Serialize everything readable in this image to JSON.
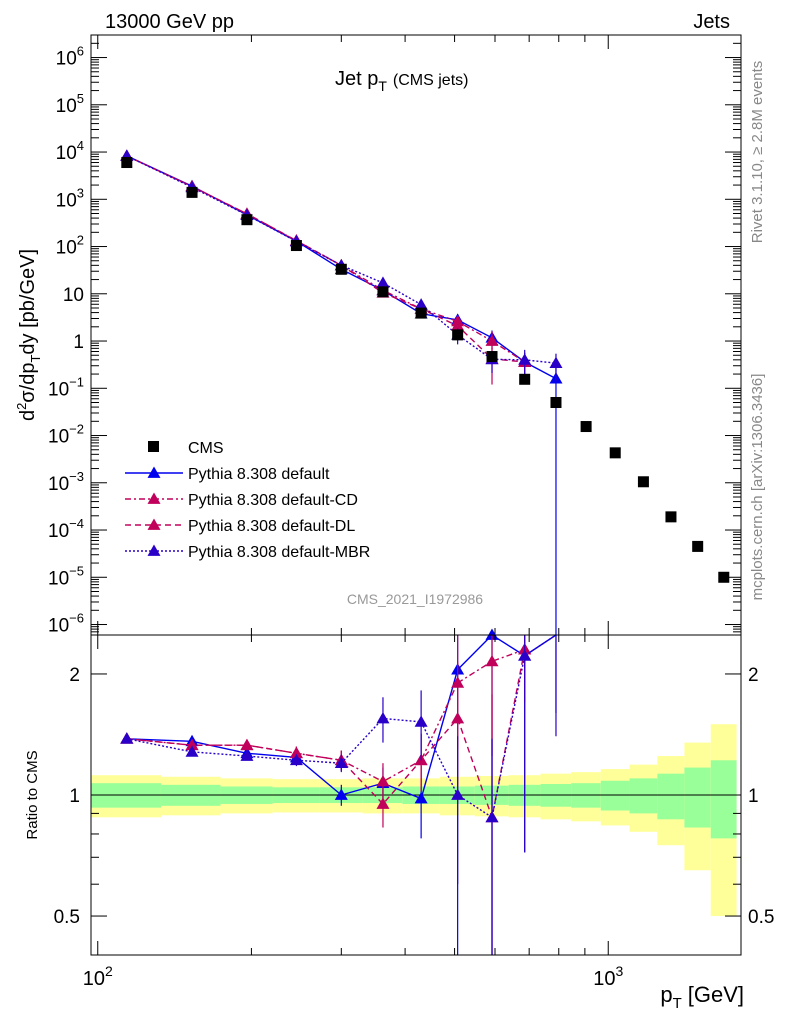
{
  "header": {
    "left": "13000 GeV pp",
    "right": "Jets"
  },
  "side_labels": {
    "rivet": "Rivet 3.1.10, ≥ 2.8M events",
    "mcplots": "mcplots.cern.ch [arXiv:1306.3436]"
  },
  "chart_data": {
    "type": "scatter",
    "title_main": "Jet p",
    "title_sub": "T",
    "title_extra": "(CMS jets)",
    "watermark": "CMS_2021_I1972986",
    "ylabel": "d²σ/dp_T dy [pb/GeV]",
    "ratio_ylabel": "Ratio to CMS",
    "xlabel_main": "p",
    "xlabel_sub": "T",
    "xlabel_unit": "[GeV]",
    "x_scale": "log",
    "y_scale": "log",
    "xlim": [
      97,
      1820
    ],
    "ylim": [
      6e-07,
      3000000.0
    ],
    "ratio_ylim": [
      0.4,
      2.5
    ],
    "x_ticks": [
      {
        "value": 100,
        "base": "10",
        "exp": "2"
      },
      {
        "value": 1000,
        "base": "10",
        "exp": "3"
      }
    ],
    "y_ticks": [
      {
        "value": 1000000.0,
        "base": "10",
        "exp": "6"
      },
      {
        "value": 100000.0,
        "base": "10",
        "exp": "5"
      },
      {
        "value": 10000.0,
        "base": "10",
        "exp": "4"
      },
      {
        "value": 1000.0,
        "base": "10",
        "exp": "3"
      },
      {
        "value": 100.0,
        "base": "10",
        "exp": "2"
      },
      {
        "value": 10,
        "base": "10",
        "exp": ""
      },
      {
        "value": 1,
        "base": "1",
        "exp": ""
      },
      {
        "value": 0.1,
        "base": "10",
        "exp": "−1"
      },
      {
        "value": 0.01,
        "base": "10",
        "exp": "−2"
      },
      {
        "value": 0.001,
        "base": "10",
        "exp": "−3"
      },
      {
        "value": 0.0001,
        "base": "10",
        "exp": "−4"
      },
      {
        "value": 1e-05,
        "base": "10",
        "exp": "−5"
      },
      {
        "value": 1e-06,
        "base": "10",
        "exp": "−6"
      }
    ],
    "ratio_ticks": [
      {
        "value": 2,
        "label": "2"
      },
      {
        "value": 1,
        "label": "1"
      },
      {
        "value": 0.5,
        "label": "0.5"
      }
    ],
    "legend_position": "lower-left",
    "data": {
      "name": "CMS",
      "color": "#000000",
      "x": [
        114,
        153,
        196,
        245,
        300,
        362,
        430,
        507,
        592,
        686,
        790,
        905,
        1032,
        1172,
        1327,
        1497,
        1684
      ],
      "x_lo": [
        97,
        133,
        174,
        220,
        272,
        330,
        395,
        468,
        548,
        638,
        737,
        846,
        967,
        1101,
        1248,
        1410,
        1588
      ],
      "x_hi": [
        133,
        174,
        220,
        272,
        330,
        395,
        468,
        548,
        638,
        737,
        846,
        967,
        1101,
        1248,
        1410,
        1588,
        1784
      ],
      "y": [
        6000,
        1400,
        370,
        105,
        33,
        11,
        3.9,
        1.35,
        0.47,
        0.155,
        0.05,
        0.0155,
        0.0043,
        0.00105,
        0.00019,
        4.5e-05,
        1e-05
      ],
      "band_inner": [
        0.07,
        0.06,
        0.05,
        0.045,
        0.045,
        0.045,
        0.05,
        0.05,
        0.055,
        0.06,
        0.065,
        0.07,
        0.085,
        0.1,
        0.13,
        0.17,
        0.22
      ],
      "band_outer": [
        0.12,
        0.11,
        0.1,
        0.095,
        0.095,
        0.1,
        0.1,
        0.11,
        0.115,
        0.12,
        0.13,
        0.14,
        0.16,
        0.19,
        0.25,
        0.35,
        0.5
      ]
    },
    "series": [
      {
        "name": "Pythia 8.308 default",
        "color": "#0000ee",
        "dash": "none",
        "x": [
          114,
          153,
          196,
          245,
          300,
          362,
          430,
          507,
          592,
          686,
          790
        ],
        "ratio": [
          1.38,
          1.36,
          1.27,
          1.24,
          1.0,
          1.07,
          0.98,
          2.05,
          2.5,
          2.22,
          3.2
        ],
        "ratio_err": [
          0.02,
          0.02,
          0.03,
          0.04,
          0.06,
          0.1,
          0.2,
          2.5,
          2.5,
          1.5,
          1.6
        ],
        "y": [
          8280,
          1904,
          470,
          130,
          33,
          11.8,
          3.8,
          2.8,
          1.17,
          0.36,
          0.16
        ],
        "y_err": [
          150,
          40,
          15,
          5,
          2,
          0.8,
          0.5,
          0.9,
          0.5,
          0.2,
          0.16
        ]
      },
      {
        "name": "Pythia 8.308 default-CD",
        "color": "#c0005a",
        "dash": "6,3,2,3",
        "x": [
          114,
          153,
          196,
          245,
          300,
          362,
          430,
          507,
          592,
          686
        ],
        "ratio": [
          1.38,
          1.33,
          1.33,
          1.27,
          1.22,
          1.08,
          1.22,
          1.9,
          2.15,
          2.3
        ],
        "ratio_err": [
          0.02,
          0.02,
          0.04,
          0.05,
          0.07,
          0.12,
          0.2,
          0.6,
          0.9,
          0.6
        ],
        "y": [
          8280,
          1862,
          492,
          133,
          40,
          11.9,
          4.8,
          2.6,
          1.0,
          0.36
        ],
        "y_err": [
          150,
          40,
          15,
          5,
          2.5,
          1.0,
          0.7,
          0.8,
          0.6,
          0.2
        ]
      },
      {
        "name": "Pythia 8.308 default-DL",
        "color": "#c0005a",
        "dash": "6,4",
        "x": [
          114,
          153,
          196,
          245,
          300,
          362,
          430,
          507,
          592,
          686
        ],
        "ratio": [
          1.38,
          1.33,
          1.33,
          1.27,
          1.22,
          0.95,
          1.22,
          1.55,
          0.88,
          2.3
        ],
        "ratio_err": [
          0.02,
          0.02,
          0.04,
          0.05,
          0.07,
          0.12,
          0.2,
          0.6,
          0.9,
          0.6
        ],
        "y": [
          8280,
          1862,
          492,
          133,
          40,
          10.5,
          4.8,
          2.1,
          0.42,
          0.36
        ],
        "y_err": [
          150,
          40,
          15,
          5,
          2.5,
          1.0,
          0.7,
          0.8,
          0.3,
          0.2
        ]
      },
      {
        "name": "Pythia 8.308 default-MBR",
        "color": "#2a00c8",
        "dash": "2,2",
        "x": [
          114,
          153,
          196,
          245,
          300,
          362,
          430,
          507,
          592,
          686,
          790
        ],
        "ratio": [
          1.38,
          1.28,
          1.25,
          1.22,
          1.2,
          1.55,
          1.52,
          1.0,
          0.88,
          2.22,
          3.0
        ],
        "ratio_err": [
          0.02,
          0.02,
          0.03,
          0.04,
          0.06,
          0.2,
          0.3,
          0.4,
          0.5,
          1.5,
          1.6
        ],
        "y": [
          8280,
          1792,
          463,
          128,
          40,
          17,
          5.9,
          1.35,
          0.41,
          0.4,
          0.34
        ],
        "y_err": [
          150,
          40,
          15,
          5,
          2.5,
          2.0,
          1.2,
          0.5,
          0.2,
          0.25,
          0.2
        ]
      }
    ]
  }
}
